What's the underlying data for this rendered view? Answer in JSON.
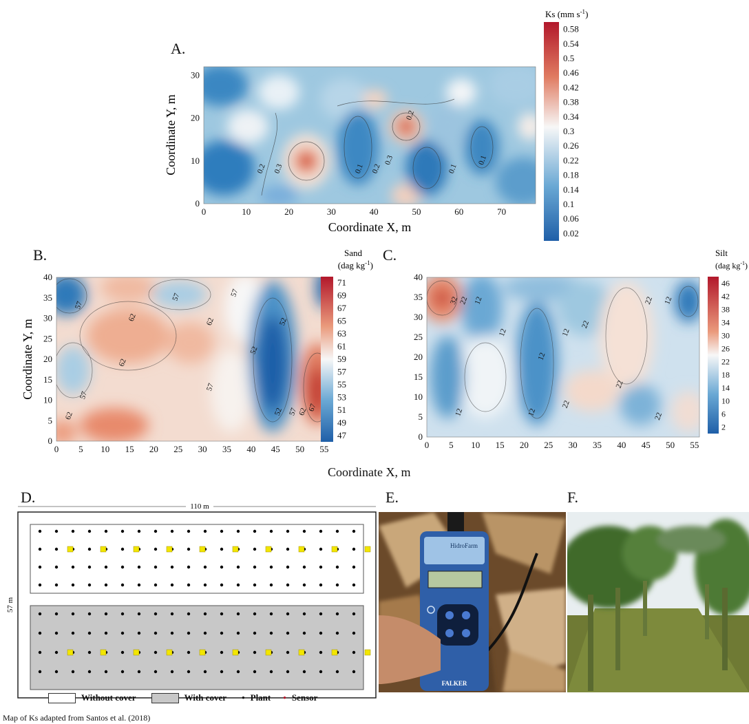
{
  "panels": {
    "A": {
      "letter": "A.",
      "xlabel": "Coordinate X, m",
      "ylabel": "Coordinate Y, m"
    },
    "B": {
      "letter": "B.",
      "ylabel": "Coordinate Y, m"
    },
    "C": {
      "letter": "C."
    },
    "shared_xlabel": "Coordinate X, m",
    "D": {
      "letter": "D.",
      "width_label": "110 m",
      "height_label": "57 m"
    },
    "E": {
      "letter": "E.",
      "device_brand": "FALKER",
      "device_model": "HidroFarm"
    },
    "F": {
      "letter": "F."
    }
  },
  "legend": {
    "without_cover": "Without cover",
    "with_cover": "With cover",
    "plant": "Plant",
    "sensor": "Sensor"
  },
  "caption": "Map of Ks adapted from Santos et al. (2018)",
  "colors": {
    "red": "#b2182b",
    "white": "#f7f7f7",
    "blue": "#2166ac",
    "sensor": "#f2e600",
    "cover": "#c8c8c8"
  },
  "chart_data": [
    {
      "id": "A",
      "type": "heatmap",
      "title": "",
      "xlabel": "Coordinate X, m",
      "ylabel": "Coordinate Y, m",
      "xlim": [
        0,
        78
      ],
      "ylim": [
        0,
        32
      ],
      "xticks": [
        0,
        10,
        20,
        30,
        40,
        50,
        60,
        70
      ],
      "yticks": [
        0,
        10,
        20,
        30
      ],
      "colorbar": {
        "title": "Ks (mm s",
        "title_sup": "-1",
        "title_end": ")",
        "min": 0.0,
        "max": 0.6,
        "ticks": [
          "0.58",
          "0.54",
          "0.5",
          "0.46",
          "0.42",
          "0.38",
          "0.34",
          "0.3",
          "0.26",
          "0.22",
          "0.18",
          "0.14",
          "0.1",
          "0.06",
          "0.02"
        ]
      },
      "contour_labels": [
        {
          "text": "0.2",
          "x": 49,
          "y": 20.5
        },
        {
          "text": "0.2",
          "x": 14,
          "y": 8
        },
        {
          "text": "0.3",
          "x": 18,
          "y": 8
        },
        {
          "text": "0.1",
          "x": 37,
          "y": 8
        },
        {
          "text": "0.2",
          "x": 41,
          "y": 8
        },
        {
          "text": "0.3",
          "x": 44,
          "y": 10
        },
        {
          "text": "0.1",
          "x": 59,
          "y": 8
        },
        {
          "text": "0.1",
          "x": 66,
          "y": 10
        }
      ]
    },
    {
      "id": "B",
      "type": "heatmap",
      "title": "",
      "ylabel": "Coordinate Y, m",
      "xlim": [
        0,
        56
      ],
      "ylim": [
        0,
        40
      ],
      "xticks": [
        0,
        5,
        10,
        15,
        20,
        25,
        30,
        35,
        40,
        45,
        50,
        55
      ],
      "yticks": [
        0,
        5,
        10,
        15,
        20,
        25,
        30,
        35,
        40
      ],
      "colorbar": {
        "title_line1": "Sand",
        "title_line2": "(dag kg",
        "title_sup": "-1",
        "title_end": ")",
        "min": 46,
        "max": 72,
        "ticks": [
          "71",
          "69",
          "67",
          "65",
          "63",
          "61",
          "59",
          "57",
          "55",
          "53",
          "51",
          "49",
          "47"
        ]
      },
      "contour_labels": [
        {
          "text": "57",
          "x": 5,
          "y": 33
        },
        {
          "text": "62",
          "x": 16,
          "y": 30
        },
        {
          "text": "57",
          "x": 25,
          "y": 35
        },
        {
          "text": "62",
          "x": 32,
          "y": 29
        },
        {
          "text": "57",
          "x": 37,
          "y": 36
        },
        {
          "text": "62",
          "x": 14,
          "y": 19
        },
        {
          "text": "57",
          "x": 6,
          "y": 11
        },
        {
          "text": "62",
          "x": 3,
          "y": 6
        },
        {
          "text": "57",
          "x": 32,
          "y": 13
        },
        {
          "text": "52",
          "x": 41,
          "y": 22
        },
        {
          "text": "52",
          "x": 47,
          "y": 29
        },
        {
          "text": "52",
          "x": 46,
          "y": 7
        },
        {
          "text": "57",
          "x": 49,
          "y": 7
        },
        {
          "text": "62",
          "x": 51,
          "y": 7
        },
        {
          "text": "67",
          "x": 53,
          "y": 8
        }
      ]
    },
    {
      "id": "C",
      "type": "heatmap",
      "title": "",
      "xlim": [
        0,
        56
      ],
      "ylim": [
        0,
        40
      ],
      "xticks": [
        0,
        5,
        10,
        15,
        20,
        25,
        30,
        35,
        40,
        45,
        50,
        55
      ],
      "yticks": [
        0,
        5,
        10,
        15,
        20,
        25,
        30,
        35,
        40
      ],
      "colorbar": {
        "title_line1": "Silt",
        "title_line2": "(dag kg",
        "title_sup": "-1",
        "title_end": ")",
        "min": 1,
        "max": 48,
        "ticks": [
          "46",
          "42",
          "38",
          "34",
          "30",
          "26",
          "22",
          "18",
          "14",
          "10",
          "6",
          "2"
        ]
      },
      "contour_labels": [
        {
          "text": "32",
          "x": 6,
          "y": 34
        },
        {
          "text": "22",
          "x": 8,
          "y": 34
        },
        {
          "text": "12",
          "x": 11,
          "y": 34
        },
        {
          "text": "12",
          "x": 16,
          "y": 26
        },
        {
          "text": "12",
          "x": 29,
          "y": 26
        },
        {
          "text": "22",
          "x": 33,
          "y": 28
        },
        {
          "text": "12",
          "x": 50,
          "y": 34
        },
        {
          "text": "22",
          "x": 46,
          "y": 34
        },
        {
          "text": "12",
          "x": 24,
          "y": 20
        },
        {
          "text": "12",
          "x": 7,
          "y": 6
        },
        {
          "text": "12",
          "x": 22,
          "y": 6
        },
        {
          "text": "22",
          "x": 29,
          "y": 8
        },
        {
          "text": "22",
          "x": 40,
          "y": 13
        },
        {
          "text": "22",
          "x": 48,
          "y": 5
        }
      ]
    }
  ]
}
